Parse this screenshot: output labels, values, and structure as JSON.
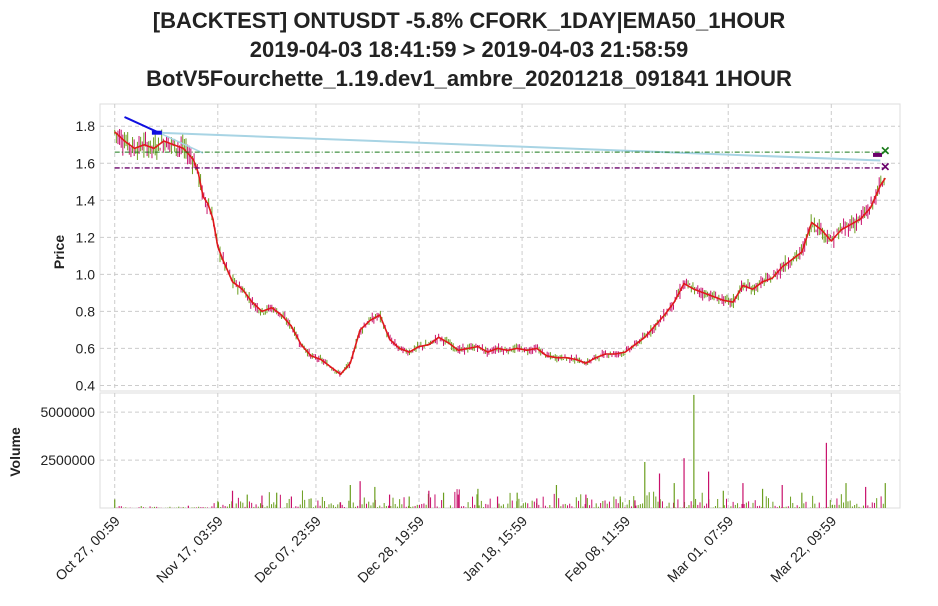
{
  "title_lines": [
    "[BACKTEST] ONTUSDT -5.8% CFORK_1DAY|EMA50_1HOUR",
    "2019-04-03 18:41:59 > 2019-04-03 21:58:59",
    "BotV5Fourchette_1.19.dev1_ambre_20201218_091841 1HOUR"
  ],
  "colors": {
    "ema": "#e0191b",
    "candle_up": "#6b9e1f",
    "candle_down": "#c8106b",
    "trend_blue": "#1010e0",
    "trend_light": "#a8d4e4",
    "green_level": "#1a7a1a",
    "purple_level": "#6a006a",
    "grid": "#cccccc"
  },
  "chart_data": [
    {
      "type": "line",
      "panel": "price",
      "ylabel": "Price",
      "ylim": [
        0.37,
        1.92
      ],
      "yticks": [
        0.4,
        0.6,
        0.8,
        1.0,
        1.2,
        1.4,
        1.6,
        1.8
      ],
      "x_tick_labels": [
        "Oct 27, 00:59",
        "Nov 17, 03:59",
        "Dec 07, 23:59",
        "Dec 28, 19:59",
        "Jan 18, 15:59",
        "Feb 08, 11:59",
        "Mar 01, 07:59",
        "Mar 22, 09:59"
      ],
      "x_tick_days": [
        0,
        21,
        41,
        62,
        83,
        104,
        125,
        146
      ],
      "xlim_days": [
        -3,
        160
      ],
      "grid": true,
      "series": [
        {
          "role": "ema",
          "x": [
            0,
            2,
            4,
            6,
            8,
            10,
            12,
            14,
            16,
            17,
            18,
            19,
            20,
            21,
            22,
            23,
            24,
            26,
            28,
            30,
            32,
            34,
            36,
            38,
            40,
            42,
            44,
            46,
            48,
            50,
            52,
            54,
            56,
            58,
            60,
            62,
            64,
            66,
            68,
            70,
            72,
            74,
            76,
            78,
            80,
            82,
            84,
            86,
            88,
            90,
            92,
            94,
            96,
            98,
            100,
            102,
            104,
            106,
            108,
            110,
            112,
            114,
            116,
            118,
            120,
            122,
            124,
            126,
            128,
            130,
            132,
            134,
            136,
            138,
            140,
            142,
            144,
            146,
            148,
            150,
            152,
            154,
            156,
            157
          ],
          "y": [
            1.77,
            1.72,
            1.68,
            1.7,
            1.68,
            1.72,
            1.7,
            1.68,
            1.62,
            1.55,
            1.42,
            1.38,
            1.3,
            1.15,
            1.08,
            1.02,
            0.96,
            0.92,
            0.85,
            0.8,
            0.82,
            0.78,
            0.72,
            0.62,
            0.56,
            0.54,
            0.5,
            0.46,
            0.52,
            0.7,
            0.75,
            0.78,
            0.65,
            0.6,
            0.58,
            0.61,
            0.62,
            0.66,
            0.63,
            0.59,
            0.6,
            0.61,
            0.58,
            0.6,
            0.59,
            0.6,
            0.59,
            0.6,
            0.56,
            0.55,
            0.55,
            0.54,
            0.52,
            0.55,
            0.57,
            0.57,
            0.58,
            0.62,
            0.66,
            0.72,
            0.78,
            0.85,
            0.95,
            0.92,
            0.9,
            0.88,
            0.86,
            0.85,
            0.94,
            0.92,
            0.96,
            0.98,
            1.04,
            1.08,
            1.12,
            1.28,
            1.24,
            1.18,
            1.24,
            1.27,
            1.3,
            1.36,
            1.48,
            1.52
          ]
        },
        {
          "role": "trend_blue",
          "x": [
            2,
            9
          ],
          "y": [
            1.85,
            1.765
          ]
        },
        {
          "role": "trend_light",
          "x": [
            9,
            156
          ],
          "y": [
            1.765,
            1.615
          ]
        },
        {
          "role": "trend_light_short",
          "x": [
            9,
            18
          ],
          "y": [
            1.765,
            1.655
          ]
        },
        {
          "role": "green_level",
          "x": [
            0,
            157
          ],
          "y": [
            1.66,
            1.66
          ]
        },
        {
          "role": "purple_level",
          "x": [
            0,
            157
          ],
          "y": [
            1.575,
            1.575
          ]
        }
      ],
      "markers": [
        {
          "x": 157,
          "y": 1.665,
          "symbol": "x",
          "role": "green_level"
        },
        {
          "x": 157,
          "y": 1.58,
          "symbol": "x",
          "role": "purple_level"
        }
      ]
    },
    {
      "type": "bar",
      "panel": "volume",
      "ylabel": "Volume",
      "ylim": [
        0,
        6000000
      ],
      "yticks": [
        2500000,
        5000000
      ],
      "ytick_labels": [
        "2500000",
        "5000000"
      ],
      "x": [
        0,
        15,
        21,
        24,
        27,
        30,
        33,
        36,
        40,
        46,
        48,
        50,
        53,
        56,
        60,
        64,
        67,
        70,
        74,
        78,
        82,
        86,
        90,
        96,
        103,
        106,
        108,
        111,
        114,
        116,
        118,
        121,
        124,
        128,
        132,
        136,
        140,
        145,
        149,
        153,
        157
      ],
      "values": [
        450000,
        120000,
        350000,
        900000,
        700000,
        650000,
        800000,
        600000,
        500000,
        300000,
        1200000,
        1400000,
        1100000,
        700000,
        600000,
        900000,
        800000,
        700000,
        1000000,
        600000,
        800000,
        500000,
        1200000,
        700000,
        600000,
        400000,
        2400000,
        1800000,
        1300000,
        2600000,
        5900000,
        1900000,
        900000,
        1300000,
        1000000,
        1200000,
        800000,
        3400000,
        1300000,
        1100000,
        1300000
      ]
    }
  ]
}
